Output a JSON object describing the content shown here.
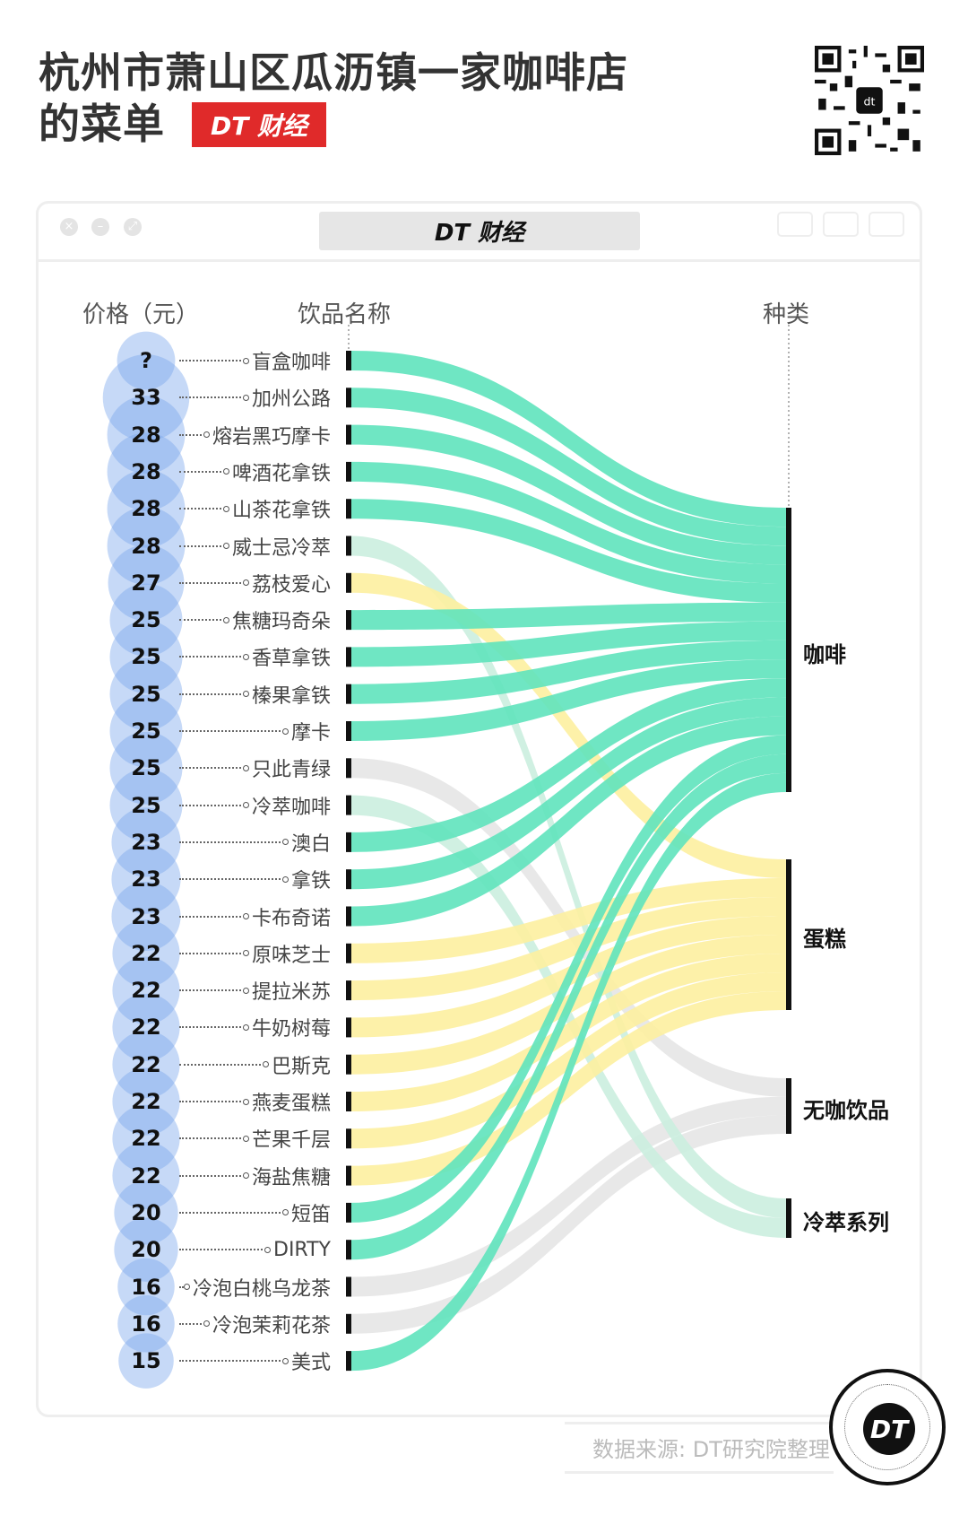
{
  "header": {
    "title_line1": "杭州市萧山区瓜沥镇一家咖啡店",
    "title_line2": "的菜单",
    "brand_badge": "DT 财经"
  },
  "window": {
    "title": "DT 财经"
  },
  "columns": {
    "price": "价格（元）",
    "name": "饮品名称",
    "category": "种类"
  },
  "categories": [
    {
      "name": "咖啡",
      "color": "#5fe3bc"
    },
    {
      "name": "蛋糕",
      "color": "#fdefa0"
    },
    {
      "name": "无咖饮品",
      "color": "#e6e6e6"
    },
    {
      "name": "冷萃系列",
      "color": "#cbeedf"
    }
  ],
  "items": [
    {
      "price": "?",
      "name": "盲盒咖啡",
      "category": "咖啡"
    },
    {
      "price": "33",
      "name": "加州公路",
      "category": "咖啡"
    },
    {
      "price": "28",
      "name": "熔岩黑巧摩卡",
      "category": "咖啡"
    },
    {
      "price": "28",
      "name": "啤酒花拿铁",
      "category": "咖啡"
    },
    {
      "price": "28",
      "name": "山茶花拿铁",
      "category": "咖啡"
    },
    {
      "price": "28",
      "name": "威士忌冷萃",
      "category": "冷萃系列"
    },
    {
      "price": "27",
      "name": "荔枝爱心",
      "category": "蛋糕"
    },
    {
      "price": "25",
      "name": "焦糖玛奇朵",
      "category": "咖啡"
    },
    {
      "price": "25",
      "name": "香草拿铁",
      "category": "咖啡"
    },
    {
      "price": "25",
      "name": "榛果拿铁",
      "category": "咖啡"
    },
    {
      "price": "25",
      "name": "摩卡",
      "category": "咖啡"
    },
    {
      "price": "25",
      "name": "只此青绿",
      "category": "无咖饮品"
    },
    {
      "price": "25",
      "name": "冷萃咖啡",
      "category": "冷萃系列"
    },
    {
      "price": "23",
      "name": "澳白",
      "category": "咖啡"
    },
    {
      "price": "23",
      "name": "拿铁",
      "category": "咖啡"
    },
    {
      "price": "23",
      "name": "卡布奇诺",
      "category": "咖啡"
    },
    {
      "price": "22",
      "name": "原味芝士",
      "category": "蛋糕"
    },
    {
      "price": "22",
      "name": "提拉米苏",
      "category": "蛋糕"
    },
    {
      "price": "22",
      "name": "牛奶树莓",
      "category": "蛋糕"
    },
    {
      "price": "22",
      "name": "巴斯克",
      "category": "蛋糕"
    },
    {
      "price": "22",
      "name": "燕麦蛋糕",
      "category": "蛋糕"
    },
    {
      "price": "22",
      "name": "芒果千层",
      "category": "蛋糕"
    },
    {
      "price": "22",
      "name": "海盐焦糖",
      "category": "蛋糕"
    },
    {
      "price": "20",
      "name": "短笛",
      "category": "咖啡"
    },
    {
      "price": "20",
      "name": "DIRTY",
      "category": "咖啡"
    },
    {
      "price": "16",
      "name": "冷泡白桃乌龙茶",
      "category": "无咖饮品"
    },
    {
      "price": "16",
      "name": "冷泡茉莉花茶",
      "category": "无咖饮品"
    },
    {
      "price": "15",
      "name": "美式",
      "category": "咖啡"
    }
  ],
  "footer": {
    "source": "数据来源: DT研究院整理",
    "logo_text": "DT"
  }
}
